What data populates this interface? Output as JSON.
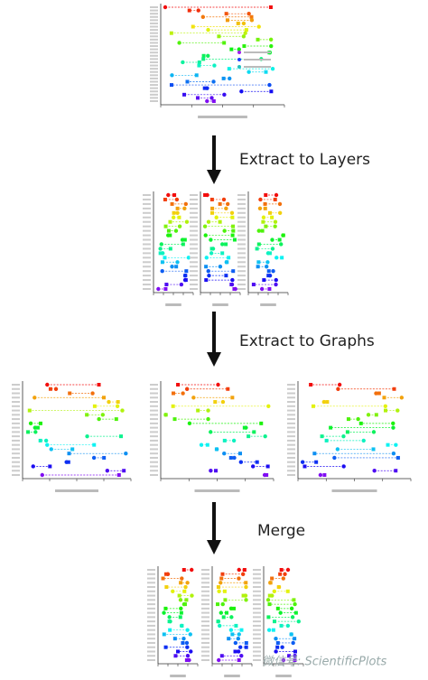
{
  "steps": [
    {
      "label": "Extract to Layers"
    },
    {
      "label": "Extract to Graphs"
    },
    {
      "label": "Merge"
    }
  ],
  "watermark": "微信号: ScientificPlots"
}
